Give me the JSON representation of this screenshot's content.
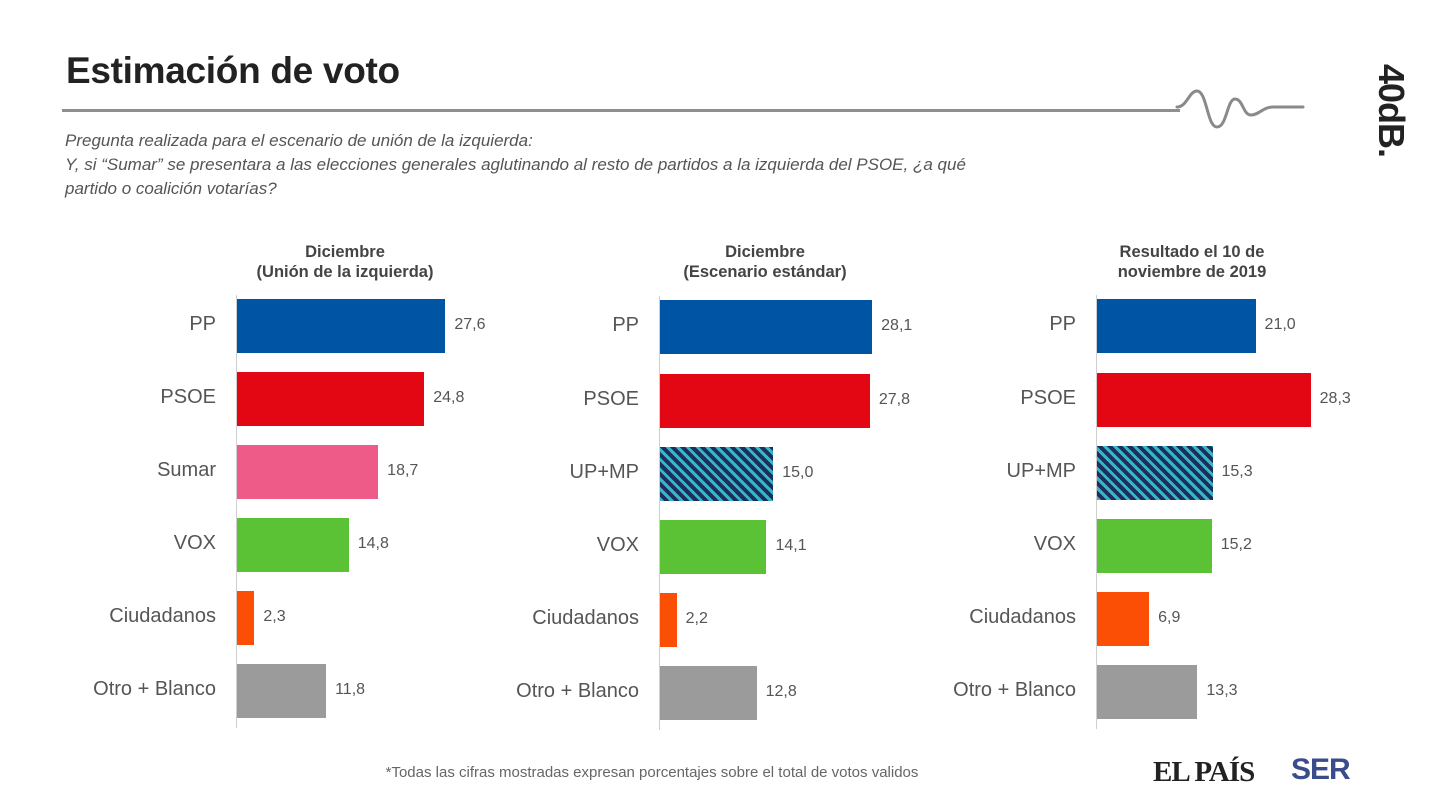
{
  "header": {
    "title": "Estimación de voto",
    "brand": "40dB."
  },
  "question": {
    "line1": "Pregunta realizada para el escenario de unión de la izquierda:",
    "line2": "Y, si “Sumar” se presentara a las elecciones generales aglutinando al resto de partidos a la izquierda del PSOE, ¿a qué",
    "line3": "partido o coalición votarías?"
  },
  "colors": {
    "PP": "#0054a4",
    "PSOE": "#e30613",
    "Sumar": "#ef5b89",
    "VOX": "#5bc236",
    "Ciudadanos": "#fa4f05",
    "Otro": "#9b9b9b",
    "UPMP_base": "#1c2e59",
    "UPMP_stripe": "#36b7c9"
  },
  "chart_data": [
    {
      "type": "bar",
      "orientation": "horizontal",
      "title_line1": "Diciembre",
      "title_line2": "(Unión de la izquierda)",
      "categories": [
        "PP",
        "PSOE",
        "Sumar",
        "VOX",
        "Ciudadanos",
        "Otro + Blanco"
      ],
      "values": [
        27.6,
        24.8,
        18.7,
        14.8,
        2.3,
        11.8
      ],
      "labels": [
        "27,6",
        "24,8",
        "18,7",
        "14,8",
        "2,3",
        "11,8"
      ],
      "colorKeys": [
        "PP",
        "PSOE",
        "Sumar",
        "VOX",
        "Ciudadanos",
        "Otro"
      ],
      "pattern": [
        false,
        false,
        false,
        false,
        false,
        false
      ]
    },
    {
      "type": "bar",
      "orientation": "horizontal",
      "title_line1": "Diciembre",
      "title_line2": "(Escenario estándar)",
      "categories": [
        "PP",
        "PSOE",
        "UP+MP",
        "VOX",
        "Ciudadanos",
        "Otro + Blanco"
      ],
      "values": [
        28.1,
        27.8,
        15.0,
        14.1,
        2.2,
        12.8
      ],
      "labels": [
        "28,1",
        "27,8",
        "15,0",
        "14,1",
        "2,2",
        "12,8"
      ],
      "colorKeys": [
        "PP",
        "PSOE",
        "UPMP",
        "VOX",
        "Ciudadanos",
        "Otro"
      ],
      "pattern": [
        false,
        false,
        true,
        false,
        false,
        false
      ]
    },
    {
      "type": "bar",
      "orientation": "horizontal",
      "title_line1": "Resultado el 10 de",
      "title_line2": "noviembre de 2019",
      "categories": [
        "PP",
        "PSOE",
        "UP+MP",
        "VOX",
        "Ciudadanos",
        "Otro + Blanco"
      ],
      "values": [
        21.0,
        28.3,
        15.3,
        15.2,
        6.9,
        13.3
      ],
      "labels": [
        "21,0",
        "28,3",
        "15,3",
        "15,2",
        "6,9",
        "13,3"
      ],
      "colorKeys": [
        "PP",
        "PSOE",
        "UPMP",
        "VOX",
        "Ciudadanos",
        "Otro"
      ],
      "pattern": [
        false,
        false,
        true,
        false,
        false,
        false
      ]
    }
  ],
  "footer": {
    "note": "*Todas las cifras mostradas expresan porcentajes sobre el total de votos validos",
    "logo_elpais": "EL PAÍS",
    "logo_ser": "SER"
  }
}
